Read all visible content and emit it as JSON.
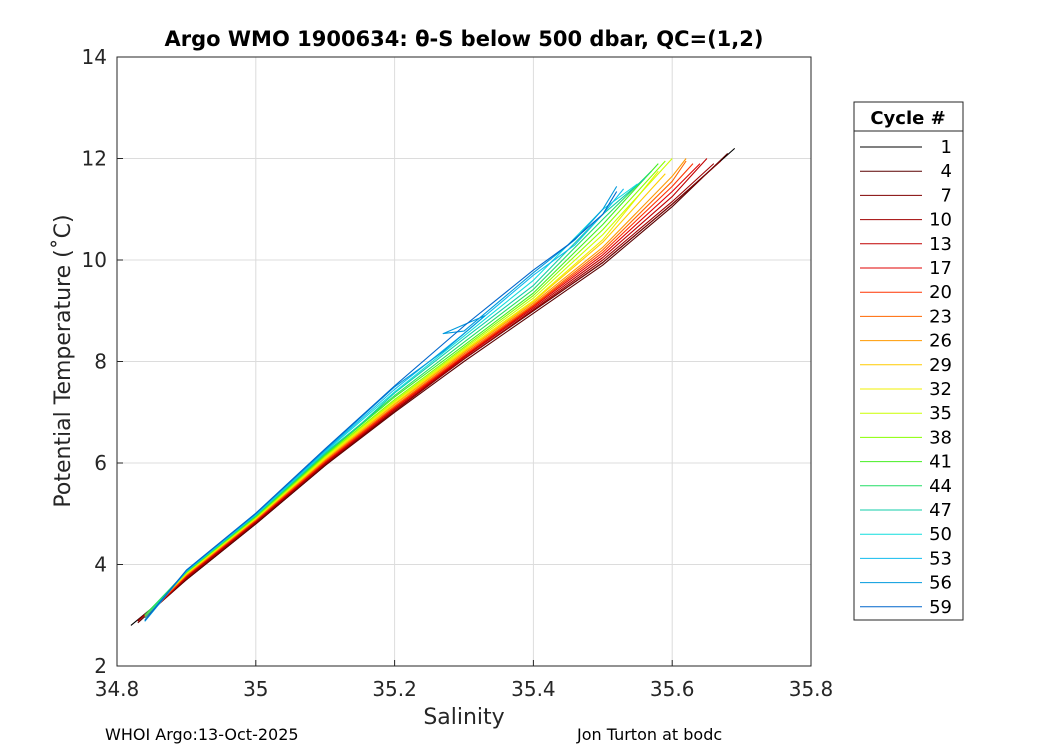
{
  "chart_data": {
    "type": "line",
    "title": "Argo WMO 1900634: θ-S below 500 dbar,  QC=(1,2)",
    "xlabel": "Salinity",
    "ylabel": "Potential Temperature (˚C)",
    "xlim": [
      34.8,
      35.8
    ],
    "ylim": [
      2,
      14
    ],
    "xticks": [
      "34.8",
      "35",
      "35.2",
      "35.4",
      "35.6",
      "35.8"
    ],
    "yticks": [
      "2",
      "4",
      "6",
      "8",
      "10",
      "12",
      "14"
    ],
    "grid": true,
    "legend_position": "right-outside",
    "legend_title": "Cycle #",
    "series": [
      {
        "name": "1",
        "color": "#000000",
        "x": [
          34.82,
          34.9,
          35.0,
          35.1,
          35.2,
          35.3,
          35.4,
          35.5,
          35.6,
          35.69
        ],
        "y": [
          2.8,
          3.7,
          4.8,
          5.95,
          7.05,
          8.05,
          9.0,
          9.95,
          11.1,
          12.2
        ]
      },
      {
        "name": "4",
        "color": "#5a0000",
        "x": [
          34.83,
          34.9,
          35.0,
          35.1,
          35.2,
          35.3,
          35.4,
          35.5,
          35.6,
          35.68
        ],
        "y": [
          2.85,
          3.7,
          4.8,
          5.95,
          7.0,
          8.0,
          8.95,
          9.9,
          11.05,
          12.1
        ]
      },
      {
        "name": "7",
        "color": "#800000",
        "x": [
          34.83,
          34.9,
          35.0,
          35.1,
          35.2,
          35.3,
          35.4,
          35.5,
          35.6,
          35.67
        ],
        "y": [
          2.9,
          3.72,
          4.82,
          5.97,
          7.02,
          8.05,
          9.0,
          9.95,
          11.1,
          11.95
        ]
      },
      {
        "name": "10",
        "color": "#a00000",
        "x": [
          34.83,
          34.9,
          35.0,
          35.1,
          35.2,
          35.3,
          35.4,
          35.5,
          35.6,
          35.66
        ],
        "y": [
          2.88,
          3.73,
          4.83,
          5.98,
          7.05,
          8.05,
          9.02,
          10.0,
          11.15,
          11.9
        ]
      },
      {
        "name": "13",
        "color": "#c00000",
        "x": [
          34.84,
          34.9,
          35.0,
          35.1,
          35.2,
          35.3,
          35.4,
          35.5,
          35.6,
          35.65
        ],
        "y": [
          2.95,
          3.75,
          4.85,
          6.0,
          7.05,
          8.08,
          9.05,
          10.05,
          11.25,
          12.0
        ]
      },
      {
        "name": "17",
        "color": "#e00000",
        "x": [
          34.84,
          34.9,
          35.0,
          35.1,
          35.2,
          35.3,
          35.4,
          35.5,
          35.6,
          35.64
        ],
        "y": [
          2.95,
          3.77,
          4.86,
          6.02,
          7.08,
          8.1,
          9.08,
          10.1,
          11.35,
          11.9
        ]
      },
      {
        "name": "20",
        "color": "#ff3300",
        "x": [
          34.84,
          34.9,
          35.0,
          35.1,
          35.2,
          35.3,
          35.4,
          35.5,
          35.6,
          35.63
        ],
        "y": [
          2.97,
          3.78,
          4.87,
          6.03,
          7.1,
          8.12,
          9.1,
          10.15,
          11.45,
          11.9
        ]
      },
      {
        "name": "23",
        "color": "#ff6600",
        "x": [
          34.84,
          34.9,
          35.0,
          35.1,
          35.2,
          35.3,
          35.4,
          35.5,
          35.6,
          35.62
        ],
        "y": [
          2.98,
          3.79,
          4.88,
          6.05,
          7.12,
          8.15,
          9.12,
          10.2,
          11.55,
          11.95
        ]
      },
      {
        "name": "26",
        "color": "#ff9900",
        "x": [
          34.84,
          34.9,
          35.0,
          35.1,
          35.2,
          35.3,
          35.4,
          35.5,
          35.6,
          35.62
        ],
        "y": [
          3.0,
          3.8,
          4.9,
          6.07,
          7.15,
          8.18,
          9.15,
          10.25,
          11.65,
          12.0
        ]
      },
      {
        "name": "29",
        "color": "#ffcc00",
        "x": [
          34.84,
          34.9,
          35.0,
          35.1,
          35.2,
          35.3,
          35.4,
          35.5,
          35.59
        ],
        "y": [
          3.0,
          3.81,
          4.9,
          6.08,
          7.17,
          8.2,
          9.18,
          10.35,
          11.7
        ]
      },
      {
        "name": "32",
        "color": "#f0f000",
        "x": [
          34.84,
          34.9,
          35.0,
          35.1,
          35.2,
          35.3,
          35.4,
          35.5,
          35.58
        ],
        "y": [
          3.0,
          3.82,
          4.91,
          6.1,
          7.2,
          8.22,
          9.2,
          10.4,
          11.75
        ]
      },
      {
        "name": "35",
        "color": "#ccff00",
        "x": [
          34.84,
          34.9,
          35.0,
          35.1,
          35.2,
          35.3,
          35.4,
          35.5,
          35.6
        ],
        "y": [
          3.0,
          3.83,
          4.92,
          6.12,
          7.22,
          8.25,
          9.25,
          10.5,
          12.0
        ]
      },
      {
        "name": "38",
        "color": "#88ff00",
        "x": [
          34.84,
          34.9,
          35.0,
          35.1,
          35.2,
          35.3,
          35.4,
          35.5,
          35.59
        ],
        "y": [
          3.0,
          3.84,
          4.93,
          6.14,
          7.25,
          8.28,
          9.3,
          10.6,
          11.95
        ]
      },
      {
        "name": "41",
        "color": "#44ee22",
        "x": [
          34.84,
          34.9,
          35.0,
          35.1,
          35.2,
          35.3,
          35.4,
          35.5,
          35.58
        ],
        "y": [
          3.0,
          3.85,
          4.95,
          6.16,
          7.3,
          8.32,
          9.35,
          10.7,
          11.9
        ]
      },
      {
        "name": "44",
        "color": "#22dd66",
        "x": [
          34.84,
          34.9,
          35.0,
          35.1,
          35.2,
          35.3,
          35.4,
          35.5,
          35.57
        ],
        "y": [
          3.0,
          3.86,
          4.96,
          6.18,
          7.33,
          8.38,
          9.42,
          10.8,
          11.75
        ]
      },
      {
        "name": "47",
        "color": "#11ccaa",
        "x": [
          34.84,
          34.9,
          35.0,
          35.1,
          35.15,
          35.2,
          35.3,
          35.4,
          35.5,
          35.56
        ],
        "y": [
          2.95,
          3.86,
          4.97,
          6.2,
          6.75,
          7.38,
          8.45,
          9.5,
          10.9,
          11.6
        ]
      },
      {
        "name": "50",
        "color": "#11dddd",
        "x": [
          34.84,
          34.9,
          35.0,
          35.1,
          35.2,
          35.3,
          35.4,
          35.5,
          35.55
        ],
        "y": [
          2.9,
          3.87,
          4.98,
          6.22,
          7.4,
          8.5,
          9.6,
          11.0,
          11.5
        ]
      },
      {
        "name": "53",
        "color": "#11bbee",
        "x": [
          34.84,
          34.9,
          35.0,
          35.1,
          35.2,
          35.3,
          35.4,
          35.46,
          35.5,
          35.53
        ],
        "y": [
          2.88,
          3.88,
          4.99,
          6.24,
          7.45,
          8.55,
          9.7,
          10.3,
          10.9,
          11.4
        ]
      },
      {
        "name": "56",
        "color": "#0099dd",
        "x": [
          34.84,
          34.9,
          35.0,
          35.1,
          35.2,
          35.27,
          35.33,
          35.27,
          35.3,
          35.4,
          35.46,
          35.5,
          35.52
        ],
        "y": [
          2.88,
          3.88,
          5.0,
          6.26,
          7.5,
          8.2,
          8.9,
          8.55,
          8.6,
          9.75,
          10.4,
          11.0,
          11.45
        ]
      },
      {
        "name": "59",
        "color": "#0066cc",
        "x": [
          34.84,
          34.9,
          35.0,
          35.1,
          35.2,
          35.3,
          35.4,
          35.45,
          35.5,
          35.52
        ],
        "y": [
          2.9,
          3.89,
          5.01,
          6.28,
          7.52,
          8.7,
          9.8,
          10.3,
          10.9,
          11.35
        ]
      }
    ]
  },
  "footer": {
    "left": "WHOI Argo:13-Oct-2025",
    "right": "Jon Turton at bodc"
  }
}
